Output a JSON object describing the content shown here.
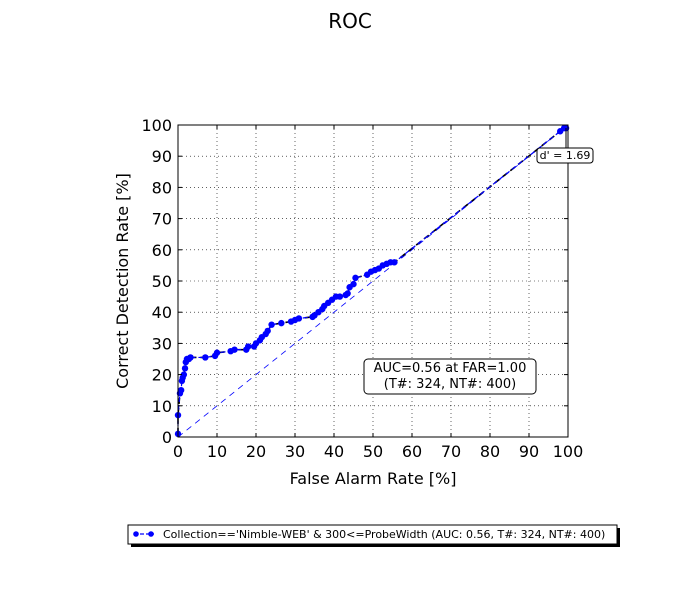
{
  "chart_data": {
    "type": "line",
    "title": "ROC",
    "xlabel": "False Alarm Rate [%]",
    "ylabel": "Correct Detection Rate [%]",
    "xlim": [
      0,
      100
    ],
    "ylim": [
      0,
      100
    ],
    "x_ticks": [
      "0",
      "10",
      "20",
      "30",
      "40",
      "50",
      "60",
      "70",
      "80",
      "90",
      "100"
    ],
    "y_ticks": [
      "0",
      "10",
      "20",
      "30",
      "40",
      "50",
      "60",
      "70",
      "80",
      "90",
      "100"
    ],
    "grid": true,
    "legend_position": "bottom-center",
    "colors": {
      "series": "#0000ff",
      "chance": "#0000ff",
      "fit": "#000000"
    },
    "series": [
      {
        "name": "Collection=='Nimble-WEB' & 300<=ProbeWidth (AUC: 0.56, T#: 324, NT#: 400)",
        "x": [
          0,
          0,
          0.5,
          0.8,
          1,
          1.2,
          1.5,
          1.8,
          2,
          2.3,
          2.8,
          3.2,
          7,
          9.5,
          10,
          13.5,
          14.5,
          17.5,
          18,
          19.5,
          20,
          21,
          21.5,
          22.5,
          23,
          24,
          26.5,
          29,
          30,
          31,
          34.5,
          35,
          36,
          37,
          37.5,
          38.5,
          39.5,
          40.5,
          41.5,
          43,
          43.5,
          44,
          45,
          45.5,
          48.5,
          49.5,
          50.5,
          51.5,
          52.5,
          53.5,
          54.5,
          55.5,
          98,
          99,
          99.5
        ],
        "y": [
          1,
          7,
          14,
          15,
          18,
          19,
          20,
          22,
          24,
          25,
          25,
          25.5,
          25.5,
          26,
          27,
          27.5,
          28,
          28,
          29,
          29,
          30,
          31,
          32,
          33,
          34,
          36,
          36.5,
          37,
          37.5,
          38,
          38.5,
          39,
          40,
          41,
          42,
          43,
          44,
          45,
          45,
          45.5,
          46,
          48,
          49,
          51,
          52,
          53,
          53.5,
          54,
          55,
          55.5,
          56,
          56,
          98,
          99,
          99
        ]
      }
    ],
    "annotations": {
      "auc_line1": "AUC=0.56 at FAR=1.00",
      "auc_line2": "(T#: 324, NT#: 400)",
      "dprime": "d' = 1.69"
    }
  }
}
